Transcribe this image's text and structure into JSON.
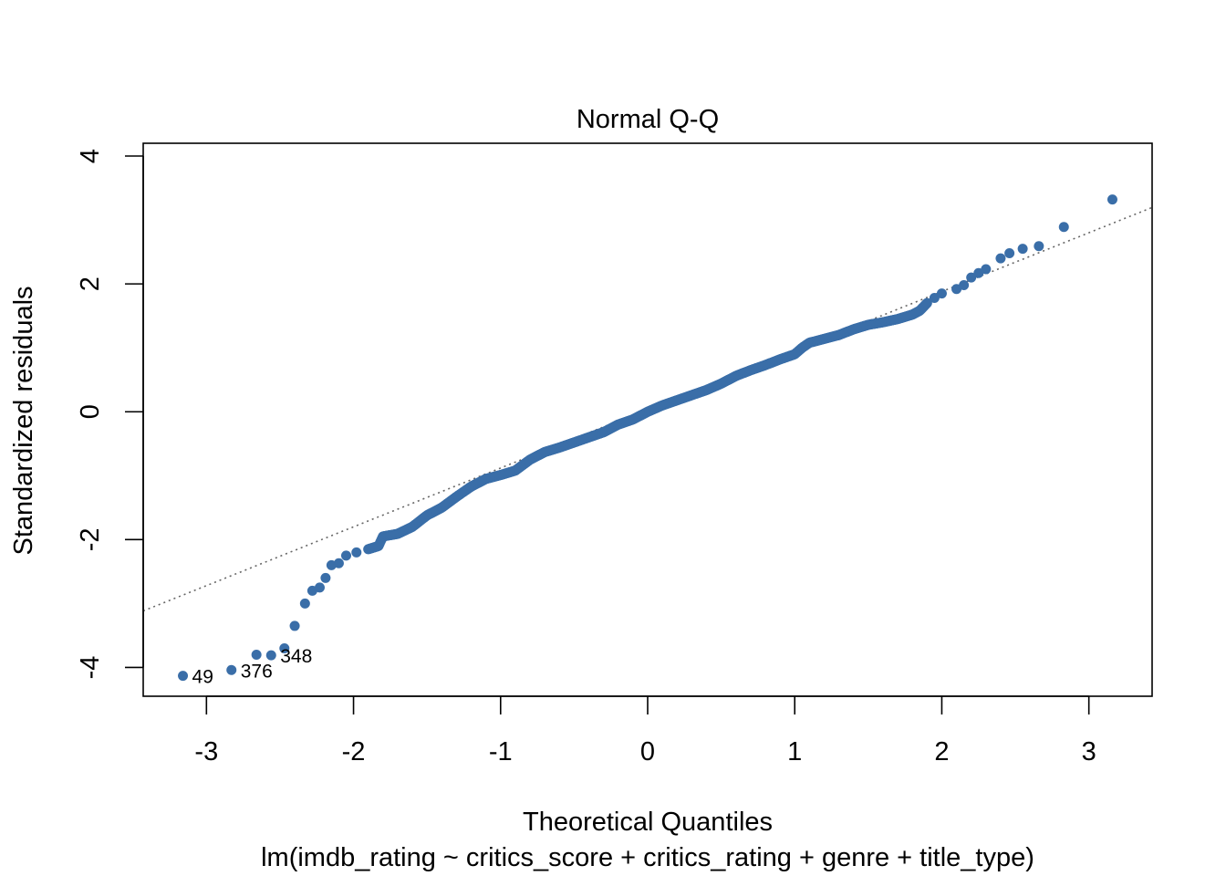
{
  "chart_data": {
    "type": "scatter",
    "title": "Normal Q-Q",
    "xlabel": "Theoretical Quantiles",
    "ylabel": "Standardized residuals",
    "subtitle": "lm(imdb_rating ~ critics_score + critics_rating + genre + title_type)",
    "xlim": [
      -3.43,
      3.43
    ],
    "ylim": [
      -4.45,
      4.2
    ],
    "xticks": [
      "-3",
      "-2",
      "-1",
      "0",
      "1",
      "2",
      "3"
    ],
    "yticks": [
      "-4",
      "-2",
      "0",
      "2",
      "4"
    ],
    "grid": false,
    "point_color": "#3A6EA8",
    "reference_line": {
      "intercept": 0.04,
      "slope": 0.92,
      "style": "dotted",
      "color": "#666666"
    },
    "labeled_points": [
      {
        "label": "49",
        "x": -3.16,
        "y": -4.13
      },
      {
        "label": "376",
        "x": -2.83,
        "y": -4.04
      },
      {
        "label": "348",
        "x": -2.56,
        "y": -3.81
      }
    ],
    "anchors": [
      [
        -3.16,
        -4.13
      ],
      [
        -2.83,
        -4.04
      ],
      [
        -2.66,
        -3.8
      ],
      [
        -2.56,
        -3.81
      ],
      [
        -2.47,
        -3.7
      ],
      [
        -2.4,
        -3.35
      ],
      [
        -2.33,
        -3.0
      ],
      [
        -2.28,
        -2.8
      ],
      [
        -2.23,
        -2.75
      ],
      [
        -2.19,
        -2.6
      ],
      [
        -2.15,
        -2.4
      ],
      [
        -2.1,
        -2.37
      ],
      [
        -2.05,
        -2.25
      ],
      [
        -1.98,
        -2.2
      ],
      [
        -1.9,
        -2.15
      ],
      [
        -1.83,
        -2.1
      ],
      [
        -1.8,
        -1.95
      ],
      [
        -1.7,
        -1.91
      ],
      [
        -1.6,
        -1.8
      ],
      [
        -1.5,
        -1.62
      ],
      [
        -1.4,
        -1.5
      ],
      [
        -1.3,
        -1.33
      ],
      [
        -1.2,
        -1.17
      ],
      [
        -1.1,
        -1.05
      ],
      [
        -1.0,
        -0.99
      ],
      [
        -0.9,
        -0.92
      ],
      [
        -0.8,
        -0.75
      ],
      [
        -0.7,
        -0.63
      ],
      [
        -0.6,
        -0.56
      ],
      [
        -0.5,
        -0.48
      ],
      [
        -0.4,
        -0.4
      ],
      [
        -0.3,
        -0.32
      ],
      [
        -0.2,
        -0.2
      ],
      [
        -0.1,
        -0.12
      ],
      [
        0.0,
        0.0
      ],
      [
        0.1,
        0.1
      ],
      [
        0.2,
        0.18
      ],
      [
        0.3,
        0.26
      ],
      [
        0.4,
        0.34
      ],
      [
        0.5,
        0.44
      ],
      [
        0.6,
        0.56
      ],
      [
        0.7,
        0.65
      ],
      [
        0.8,
        0.73
      ],
      [
        0.9,
        0.82
      ],
      [
        1.0,
        0.9
      ],
      [
        1.05,
        1.0
      ],
      [
        1.1,
        1.08
      ],
      [
        1.2,
        1.14
      ],
      [
        1.3,
        1.2
      ],
      [
        1.4,
        1.29
      ],
      [
        1.5,
        1.36
      ],
      [
        1.6,
        1.4
      ],
      [
        1.7,
        1.45
      ],
      [
        1.8,
        1.52
      ],
      [
        1.85,
        1.58
      ],
      [
        1.9,
        1.7
      ],
      [
        1.95,
        1.78
      ],
      [
        2.0,
        1.85
      ],
      [
        2.1,
        1.92
      ],
      [
        2.15,
        1.98
      ],
      [
        2.2,
        2.1
      ],
      [
        2.25,
        2.17
      ],
      [
        2.3,
        2.23
      ],
      [
        2.4,
        2.4
      ],
      [
        2.46,
        2.48
      ],
      [
        2.55,
        2.55
      ],
      [
        2.66,
        2.59
      ],
      [
        2.83,
        2.89
      ],
      [
        3.16,
        3.32
      ]
    ],
    "n_points": 650
  }
}
